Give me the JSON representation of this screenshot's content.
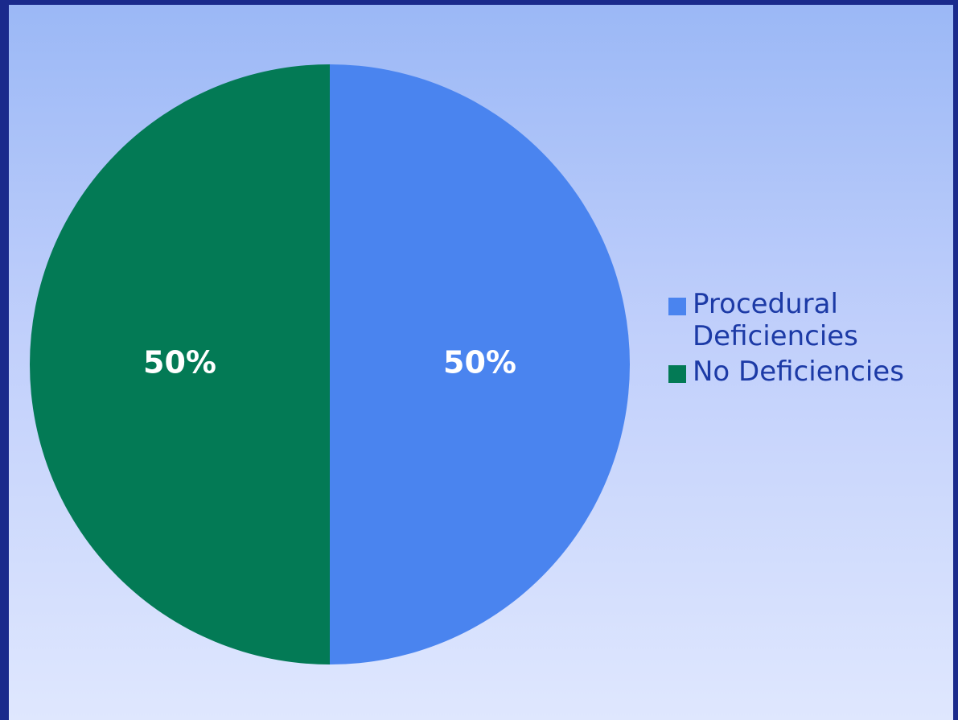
{
  "chart_data": {
    "type": "pie",
    "categories": [
      "Procedural Deficiencies",
      "No Deficiencies"
    ],
    "values": [
      50,
      50
    ],
    "value_labels": [
      "50%",
      "50%"
    ],
    "colors": [
      "#4a84ef",
      "#037a55"
    ],
    "legend": "right"
  }
}
